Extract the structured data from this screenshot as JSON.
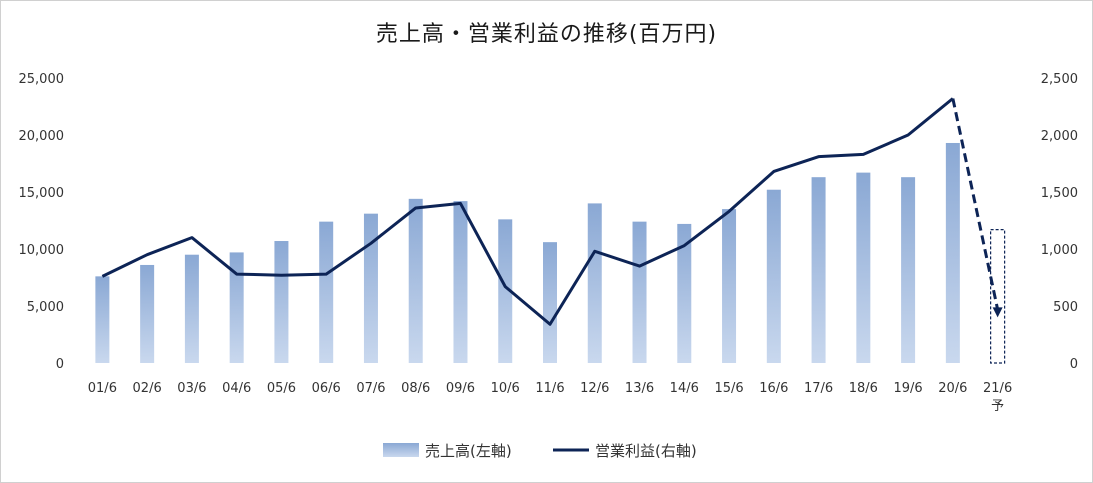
{
  "chart_data": {
    "type": "bar",
    "title": "売上高・営業利益の推移(百万円)",
    "categories": [
      "01/6",
      "02/6",
      "03/6",
      "04/6",
      "05/6",
      "06/6",
      "07/6",
      "08/6",
      "09/6",
      "10/6",
      "11/6",
      "12/6",
      "13/6",
      "14/6",
      "15/6",
      "16/6",
      "17/6",
      "18/6",
      "19/6",
      "20/6",
      "21/6"
    ],
    "last_category_note": "予",
    "y_left": {
      "min": 0,
      "max": 25000,
      "ticks": [
        "0",
        "5,000",
        "10,000",
        "15,000",
        "20,000",
        "25,000"
      ]
    },
    "y_right": {
      "min": 0,
      "max": 2500,
      "ticks": [
        "0",
        "500",
        "1,000",
        "1,500",
        "2,000",
        "2,500"
      ]
    },
    "series": [
      {
        "name": "売上高(左軸)",
        "type": "bar",
        "axis": "left",
        "color": "#8eacd6",
        "values": [
          7600,
          8600,
          9500,
          9700,
          10700,
          12400,
          13100,
          14400,
          14200,
          12600,
          10600,
          14000,
          12400,
          12200,
          13500,
          15200,
          16300,
          16700,
          16300,
          19300,
          11700
        ],
        "forecast_last": true
      },
      {
        "name": "営業利益(右軸)",
        "type": "line",
        "axis": "right",
        "color": "#0d2456",
        "values": [
          760,
          950,
          1100,
          780,
          770,
          780,
          1050,
          1360,
          1400,
          670,
          340,
          980,
          850,
          1030,
          1330,
          1680,
          1810,
          1830,
          2000,
          2320,
          400
        ],
        "forecast_last": true
      }
    ],
    "legend": "bottom-center",
    "grid": false
  }
}
